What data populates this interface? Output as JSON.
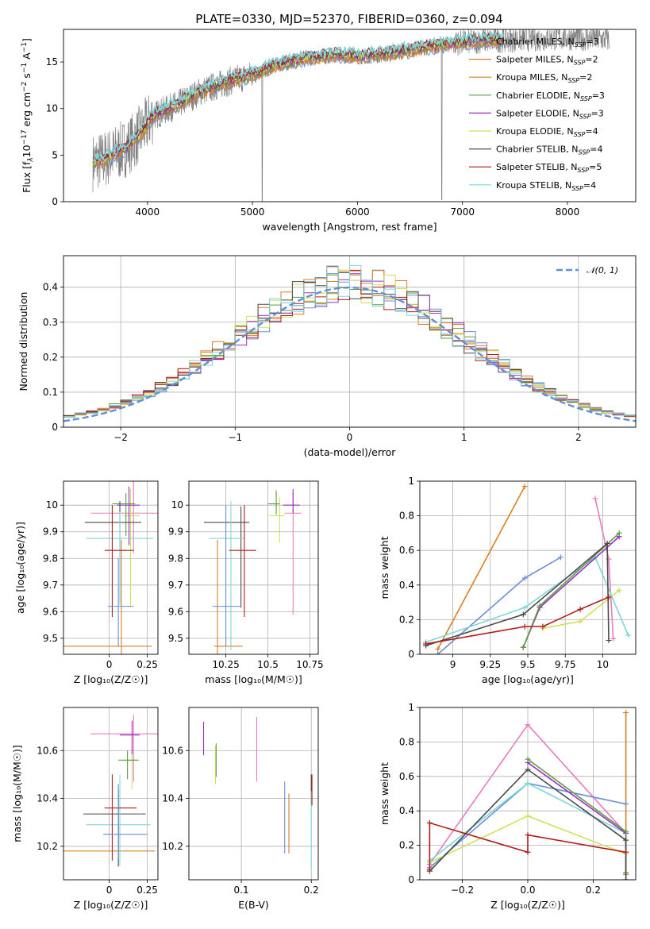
{
  "figure_title": "PLATE=0330, MJD=52370, FIBERID=0360, z=0.094",
  "colors": {
    "Chabrier MILES": "#6a8fd6",
    "Salpeter MILES": "#e07a2c",
    "Kroupa MILES": "#d9801f",
    "Chabrier ELODIE": "#5f9b45",
    "Salpeter ELODIE": "#9a2fc0",
    "Kroupa ELODIE": "#cfe05a",
    "Chabrier STELIB": "#4a4a4a",
    "Salpeter STELIB": "#b31b1b",
    "Kroupa STELIB": "#7dd6d9",
    "pink": "#e97bbf",
    "data": "#808080",
    "normal": "#5f8fd6"
  },
  "chart_data": [
    {
      "id": "spectrum",
      "type": "line",
      "xlabel": "wavelength [Angstrom, rest frame]",
      "ylabel": "Flux [f_λ10^{-17} erg cm^{-2} s^{-1} A^{-1}]",
      "ylabel_parts": {
        "pre": "Flux [f",
        "lambda": "λ",
        "exp_base": "10",
        "exp1": "−17",
        "mid": " erg cm",
        "exp2": "−2",
        "mid2": " s",
        "exp3": "−1",
        "mid3": " A",
        "exp4": "−1",
        "post": "]"
      },
      "xlim": [
        3200,
        8650
      ],
      "ylim": [
        0,
        18.5
      ],
      "xticks": [
        4000,
        5000,
        6000,
        7000,
        8000
      ],
      "yticks": [
        0,
        5,
        10,
        15
      ],
      "legend": [
        {
          "label": "Chabrier MILES, N",
          "sub": "SSP",
          "post": "=3",
          "color": "#6a8fd6"
        },
        {
          "label": "Salpeter MILES, N",
          "sub": "SSP",
          "post": "=2",
          "color": "#e07a2c"
        },
        {
          "label": "Kroupa MILES, N",
          "sub": "SSP",
          "post": "=2",
          "color": "#d9801f"
        },
        {
          "label": "Chabrier ELODIE, N",
          "sub": "SSP",
          "post": "=3",
          "color": "#5f9b45"
        },
        {
          "label": "Salpeter ELODIE, N",
          "sub": "SSP",
          "post": "=3",
          "color": "#9a2fc0"
        },
        {
          "label": "Kroupa ELODIE, N",
          "sub": "SSP",
          "post": "=4",
          "color": "#cfe05a"
        },
        {
          "label": "Chabrier STELIB, N",
          "sub": "SSP",
          "post": "=4",
          "color": "#4a4a4a"
        },
        {
          "label": "Salpeter STELIB, N",
          "sub": "SSP",
          "post": "=5",
          "color": "#b31b1b"
        },
        {
          "label": "Kroupa STELIB, N",
          "sub": "SSP",
          "post": "=4",
          "color": "#7dd6d9"
        }
      ],
      "continuum_anchors": {
        "x": [
          3480,
          3600,
          3800,
          3950,
          4050,
          4300,
          4500,
          4800,
          5000,
          5200,
          5500,
          5800,
          6000,
          6300,
          6600,
          6900,
          7200,
          7500,
          8000,
          8400
        ],
        "y": [
          4.2,
          4.6,
          5.8,
          7.5,
          9.2,
          10.5,
          11.8,
          13.0,
          13.6,
          14.6,
          15.4,
          15.8,
          15.6,
          15.9,
          16.5,
          17.0,
          17.3,
          17.4,
          17.6,
          17.4
        ]
      }
    },
    {
      "id": "residuals",
      "type": "histogram",
      "xlabel": "(data-model)/error",
      "ylabel": "Normed distribution",
      "xlim": [
        -2.5,
        2.5
      ],
      "ylim": [
        0,
        0.49
      ],
      "xticks": [
        -2,
        -1,
        0,
        1,
        2
      ],
      "xtick_labels": [
        "−2",
        "−1",
        "0",
        "1",
        "2"
      ],
      "yticks": [
        0.0,
        0.1,
        0.2,
        0.3,
        0.4
      ],
      "legend": {
        "label": "𝒩(0, 1)"
      },
      "bin_width": 0.1
    },
    {
      "id": "age_vs_Z",
      "type": "scatter",
      "xlabel": "Z [log₁₀(Z/Z☉)]",
      "ylabel": "age  [log₁₀(age/yr)]",
      "xlim": [
        -0.3,
        0.32
      ],
      "ylim": [
        9.44,
        10.09
      ],
      "xticks": [
        0.0,
        0.25
      ],
      "yticks": [
        9.5,
        9.6,
        9.7,
        9.8,
        9.9,
        10.0
      ],
      "points": [
        {
          "x": 0.08,
          "xerr": [
            0.38,
            0.2
          ],
          "y": 9.47,
          "yerr": [
            0.05,
            0.4
          ],
          "color": "#d9801f"
        },
        {
          "x": 0.16,
          "xerr": [
            0.28,
            0.35
          ],
          "y": 9.97,
          "yerr": [
            0.15,
            0.12
          ],
          "color": "#e97bbf"
        },
        {
          "x": 0.14,
          "xerr": [
            0.05,
            0.06
          ],
          "y": 9.96,
          "yerr": [
            0.34,
            0.1
          ],
          "color": "#cfe05a"
        },
        {
          "x": 0.13,
          "xerr": [
            0.08,
            0.07
          ],
          "y": 10.0,
          "yerr": [
            0.15,
            0.07
          ],
          "color": "#9a2fc0"
        },
        {
          "x": 0.11,
          "xerr": [
            0.09,
            0.06
          ],
          "y": 10.005,
          "yerr": [
            0.12,
            0.04
          ],
          "color": "#5f9b45"
        },
        {
          "x": 0.07,
          "xerr": [
            0.23,
            0.14
          ],
          "y": 9.935,
          "yerr": [
            0.3,
            0.08
          ],
          "color": "#4a4a4a"
        },
        {
          "x": 0.07,
          "xerr": [
            0.22,
            0.22
          ],
          "y": 9.875,
          "yerr": [
            0.25,
            0.1
          ],
          "color": "#7dd6d9"
        },
        {
          "x": 0.02,
          "xerr": [
            0.05,
            0.14
          ],
          "y": 9.83,
          "yerr": [
            0.25,
            0.17
          ],
          "color": "#b31b1b"
        },
        {
          "x": 0.06,
          "xerr": [
            0.07,
            0.1
          ],
          "y": 9.62,
          "yerr": [
            0.15,
            0.18
          ],
          "color": "#6a8fd6"
        }
      ]
    },
    {
      "id": "age_vs_mass",
      "type": "scatter",
      "xlabel": "mass [log₁₀(M/M☉)]",
      "xlim": [
        10.03,
        10.8
      ],
      "ylim": [
        9.44,
        10.09
      ],
      "xticks": [
        10.25,
        10.5,
        10.75
      ],
      "yticks": [
        9.5,
        9.6,
        9.7,
        9.8,
        9.9,
        10.0
      ],
      "points": [
        {
          "x": 10.2,
          "xerr": [
            0.02,
            0.15
          ],
          "y": 9.47,
          "yerr": [
            0.05,
            0.4
          ],
          "color": "#d9801f"
        },
        {
          "x": 10.65,
          "xerr": [
            0.05,
            0.05
          ],
          "y": 9.97,
          "yerr": [
            0.38,
            0.08
          ],
          "color": "#e97bbf"
        },
        {
          "x": 10.57,
          "xerr": [
            0.06,
            0.03
          ],
          "y": 9.96,
          "yerr": [
            0.1,
            0.07
          ],
          "color": "#cfe05a"
        },
        {
          "x": 10.65,
          "xerr": [
            0.06,
            0.04
          ],
          "y": 10.0,
          "yerr": [
            0.03,
            0.06
          ],
          "color": "#9a2fc0"
        },
        {
          "x": 10.55,
          "xerr": [
            0.05,
            0.02
          ],
          "y": 10.005,
          "yerr": [
            0.04,
            0.05
          ],
          "color": "#5f9b45"
        },
        {
          "x": 10.34,
          "xerr": [
            0.22,
            0.05
          ],
          "y": 9.935,
          "yerr": [
            0.32,
            0.06
          ],
          "color": "#4a4a4a"
        },
        {
          "x": 10.28,
          "xerr": [
            0.13,
            0.08
          ],
          "y": 9.875,
          "yerr": [
            0.42,
            0.14
          ],
          "color": "#7dd6d9"
        },
        {
          "x": 10.36,
          "xerr": [
            0.09,
            0.07
          ],
          "y": 9.83,
          "yerr": [
            0.25,
            0.17
          ],
          "color": "#b31b1b"
        },
        {
          "x": 10.25,
          "xerr": [
            0.08,
            0.09
          ],
          "y": 9.62,
          "yerr": [
            0.15,
            0.38
          ],
          "color": "#6a8fd6"
        }
      ]
    },
    {
      "id": "weight_vs_age",
      "type": "line",
      "xlabel": "age  [log₁₀(age/yr)]",
      "ylabel": "mass weight",
      "xlim": [
        8.78,
        10.22
      ],
      "ylim": [
        0,
        1.0
      ],
      "xticks": [
        9.0,
        9.25,
        9.5,
        9.75,
        10.0
      ],
      "yticks": [
        0.0,
        0.2,
        0.4,
        0.6,
        0.8,
        1.0
      ],
      "series": [
        {
          "color": "#d9801f",
          "x": [
            8.9,
            9.48
          ],
          "y": [
            0.03,
            0.97
          ]
        },
        {
          "color": "#6a8fd6",
          "x": [
            8.9,
            9.48,
            9.72
          ],
          "y": [
            0.0,
            0.44,
            0.56
          ]
        },
        {
          "color": "#e97bbf",
          "x": [
            9.95,
            10.04,
            10.07
          ],
          "y": [
            0.9,
            0.55,
            0.09
          ]
        },
        {
          "color": "#cfe05a",
          "x": [
            9.6,
            9.85,
            10.11
          ],
          "y": [
            0.15,
            0.19,
            0.37
          ]
        },
        {
          "color": "#7dd6d9",
          "x": [
            8.82,
            9.48,
            9.95,
            10.17
          ],
          "y": [
            0.07,
            0.27,
            0.56,
            0.11
          ]
        },
        {
          "color": "#9a2fc0",
          "x": [
            9.47,
            9.58,
            10.11
          ],
          "y": [
            0.04,
            0.27,
            0.68
          ]
        },
        {
          "color": "#5f9b45",
          "x": [
            9.47,
            9.58,
            10.11
          ],
          "y": [
            0.04,
            0.28,
            0.7
          ]
        },
        {
          "color": "#4a4a4a",
          "x": [
            8.82,
            9.47,
            10.03,
            10.04
          ],
          "y": [
            0.05,
            0.23,
            0.64,
            0.08
          ]
        },
        {
          "color": "#b31b1b",
          "x": [
            8.82,
            9.48,
            9.6,
            9.85,
            10.04
          ],
          "y": [
            0.06,
            0.16,
            0.16,
            0.26,
            0.33
          ]
        }
      ]
    },
    {
      "id": "mass_vs_Z",
      "type": "scatter",
      "xlabel": "Z [log₁₀(Z/Z☉)]",
      "ylabel": "mass [log₁₀(M/M☉)]",
      "xlim": [
        -0.3,
        0.32
      ],
      "ylim": [
        10.06,
        10.78
      ],
      "xticks": [
        0.0,
        0.25
      ],
      "yticks": [
        10.2,
        10.4,
        10.6
      ],
      "points": [
        {
          "x": 0.06,
          "xerr": [
            0.38,
            0.24
          ],
          "y": 10.18,
          "yerr": [
            0.03,
            0.24
          ],
          "color": "#d9801f"
        },
        {
          "x": 0.16,
          "xerr": [
            0.28,
            0.34
          ],
          "y": 10.67,
          "yerr": [
            0.2,
            0.08
          ],
          "color": "#e97bbf"
        },
        {
          "x": 0.15,
          "xerr": [
            0.05,
            0.05
          ],
          "y": 10.56,
          "yerr": [
            0.12,
            0.06
          ],
          "color": "#cfe05a"
        },
        {
          "x": 0.15,
          "xerr": [
            0.08,
            0.05
          ],
          "y": 10.665,
          "yerr": [
            0.08,
            0.06
          ],
          "color": "#9a2fc0"
        },
        {
          "x": 0.12,
          "xerr": [
            0.06,
            0.07
          ],
          "y": 10.56,
          "yerr": [
            0.08,
            0.04
          ],
          "color": "#5f9b45"
        },
        {
          "x": 0.06,
          "xerr": [
            0.23,
            0.18
          ],
          "y": 10.335,
          "yerr": [
            0.22,
            0.1
          ],
          "color": "#4a4a4a"
        },
        {
          "x": 0.07,
          "xerr": [
            0.22,
            0.2
          ],
          "y": 10.29,
          "yerr": [
            0.17,
            0.21
          ],
          "color": "#7dd6d9"
        },
        {
          "x": 0.02,
          "xerr": [
            0.05,
            0.16
          ],
          "y": 10.36,
          "yerr": [
            0.22,
            0.14
          ],
          "color": "#b31b1b"
        },
        {
          "x": 0.06,
          "xerr": [
            0.1,
            0.19
          ],
          "y": 10.25,
          "yerr": [
            0.1,
            0.21
          ],
          "color": "#6a8fd6"
        }
      ]
    },
    {
      "id": "mass_vs_ebv",
      "type": "scatter",
      "xlabel": "E(B-V)",
      "xlim": [
        0.025,
        0.21
      ],
      "ylim": [
        10.06,
        10.78
      ],
      "xticks": [
        0.1,
        0.2
      ],
      "yticks": [
        10.2,
        10.4,
        10.6
      ],
      "points": [
        {
          "x": 0.168,
          "y": 10.3,
          "yerr": [
            0.13,
            0.12
          ],
          "color": "#d9801f"
        },
        {
          "x": 0.122,
          "y": 10.61,
          "yerr": [
            0.14,
            0.13
          ],
          "color": "#e97bbf"
        },
        {
          "x": 0.063,
          "y": 10.54,
          "yerr": [
            0.08,
            0.08
          ],
          "color": "#cfe05a"
        },
        {
          "x": 0.046,
          "y": 10.65,
          "yerr": [
            0.07,
            0.07
          ],
          "color": "#9a2fc0"
        },
        {
          "x": 0.064,
          "y": 10.56,
          "yerr": [
            0.07,
            0.07
          ],
          "color": "#5f9b45"
        },
        {
          "x": 0.2,
          "y": 10.44,
          "yerr": [
            0.06,
            0.06
          ],
          "color": "#4a4a4a"
        },
        {
          "x": 0.2,
          "y": 10.27,
          "yerr": [
            0.16,
            0.16
          ],
          "color": "#7dd6d9"
        },
        {
          "x": 0.201,
          "y": 10.44,
          "yerr": [
            0.07,
            0.06
          ],
          "color": "#b31b1b"
        },
        {
          "x": 0.162,
          "y": 10.32,
          "yerr": [
            0.15,
            0.15
          ],
          "color": "#6a8fd6"
        }
      ]
    },
    {
      "id": "weight_vs_Z",
      "type": "line",
      "xlabel": "Z [log₁₀(Z/Z☉)]",
      "ylabel": "mass weight",
      "xlim": [
        -0.33,
        0.33
      ],
      "ylim": [
        0,
        1.0
      ],
      "xticks": [
        -0.2,
        0.0,
        0.2
      ],
      "xtick_labels": [
        "−0.2",
        "0.0",
        "0.2"
      ],
      "yticks": [
        0.0,
        0.2,
        0.4,
        0.6,
        0.8,
        1.0
      ],
      "series": [
        {
          "color": "#d9801f",
          "x": [
            0.3,
            0.3
          ],
          "y": [
            0.03,
            0.97
          ]
        },
        {
          "color": "#e97bbf",
          "x": [
            -0.3,
            0.0,
            0.3
          ],
          "y": [
            0.09,
            0.9,
            0.27
          ]
        },
        {
          "color": "#6a8fd6",
          "x": [
            -0.3,
            0.0,
            0.3
          ],
          "y": [
            0.07,
            0.56,
            0.44
          ]
        },
        {
          "color": "#cfe05a",
          "x": [
            -0.3,
            0.0,
            0.3
          ],
          "y": [
            0.1,
            0.37,
            0.15
          ]
        },
        {
          "color": "#7dd6d9",
          "x": [
            -0.3,
            0.0,
            0.3
          ],
          "y": [
            0.11,
            0.56,
            0.27
          ]
        },
        {
          "color": "#9a2fc0",
          "x": [
            0.0,
            0.3,
            0.3
          ],
          "y": [
            0.68,
            0.27,
            0.04
          ]
        },
        {
          "color": "#5f9b45",
          "x": [
            0.0,
            0.3,
            0.3
          ],
          "y": [
            0.7,
            0.28,
            0.04
          ]
        },
        {
          "color": "#4a4a4a",
          "x": [
            -0.3,
            0.0,
            0.3,
            0.3
          ],
          "y": [
            0.05,
            0.64,
            0.23,
            0.0
          ]
        },
        {
          "color": "#b31b1b",
          "x": [
            -0.3,
            -0.3,
            0.0,
            0.0,
            0.3
          ],
          "y": [
            0.06,
            0.33,
            0.16,
            0.26,
            0.16
          ]
        }
      ]
    }
  ]
}
